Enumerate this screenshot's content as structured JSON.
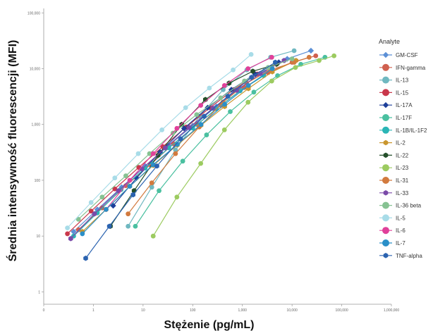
{
  "chart_data": {
    "type": "line",
    "title": "",
    "xlabel": "Stężenie (pg/mL)",
    "ylabel": "Średnia intensywność fluorescencji (MFI)",
    "x_scale": "log",
    "y_scale": "log",
    "xlim": [
      0.1,
      1000000
    ],
    "ylim": [
      0.6,
      120000
    ],
    "x_ticks": [
      {
        "value": 0.1,
        "label": "0"
      },
      {
        "value": 1,
        "label": "1"
      },
      {
        "value": 10,
        "label": "10"
      },
      {
        "value": 100,
        "label": "100"
      },
      {
        "value": 1000,
        "label": "1,000"
      },
      {
        "value": 10000,
        "label": "10,000"
      },
      {
        "value": 100000,
        "label": "100,000"
      },
      {
        "value": 1000000,
        "label": "1,000,000"
      }
    ],
    "y_ticks": [
      {
        "value": 1,
        "label": "1"
      },
      {
        "value": 10,
        "label": "10"
      },
      {
        "value": 100,
        "label": "100"
      },
      {
        "value": 1000,
        "label": "1,000"
      },
      {
        "value": 10000,
        "label": "10,000"
      },
      {
        "value": 100000,
        "label": "100,000"
      }
    ],
    "grid": false,
    "legend_title": "Analyte",
    "legend_position": "right",
    "series": [
      {
        "name": "GM-CSF",
        "color": "#5b8fd6",
        "marker": "diamond",
        "x": [
          0.4,
          1.2,
          3.7,
          11,
          33,
          100,
          300,
          900,
          2700,
          8000,
          24000
        ],
        "y": [
          12,
          30,
          75,
          180,
          420,
          950,
          2100,
          4500,
          9000,
          15000,
          21000
        ]
      },
      {
        "name": "IFN-gamma",
        "color": "#d0604f",
        "marker": "circle",
        "x": [
          0.5,
          1.5,
          4.5,
          14,
          41,
          123,
          370,
          1100,
          3300,
          10000,
          30000
        ],
        "y": [
          13,
          32,
          80,
          190,
          450,
          1000,
          2200,
          4600,
          8500,
          13000,
          17000
        ]
      },
      {
        "name": "IL-13",
        "color": "#6fb8c0",
        "marker": "circle",
        "x": [
          5,
          15,
          45,
          137,
          410,
          1230,
          3700,
          11000
        ],
        "y": [
          15,
          75,
          350,
          1400,
          4200,
          9500,
          16000,
          21000
        ]
      },
      {
        "name": "IL-15",
        "color": "#c9374b",
        "marker": "circle",
        "x": [
          0.3,
          0.9,
          2.7,
          8.2,
          25,
          74,
          222,
          667,
          2000
        ],
        "y": [
          11,
          28,
          70,
          170,
          400,
          900,
          2000,
          4200,
          8000
        ]
      },
      {
        "name": "IL-17A",
        "color": "#1d3f9a",
        "marker": "diamond",
        "x": [
          2.5,
          7.4,
          22,
          67,
          200,
          600,
          1800,
          5400
        ],
        "y": [
          35,
          110,
          320,
          850,
          2000,
          4200,
          8000,
          13000
        ]
      },
      {
        "name": "IL-17F",
        "color": "#4ac0a0",
        "marker": "circle",
        "x": [
          7,
          21,
          63,
          190,
          570,
          1700,
          5100,
          15000,
          46000
        ],
        "y": [
          15,
          65,
          220,
          650,
          1700,
          3800,
          7500,
          12000,
          16000
        ]
      },
      {
        "name": "IL-1B/IL-1F2",
        "color": "#2ab5b5",
        "marker": "circle",
        "x": [
          0.4,
          1.2,
          3.6,
          11,
          33,
          100,
          300,
          900,
          2700
        ],
        "y": [
          10,
          26,
          68,
          165,
          380,
          860,
          1900,
          4000,
          7500
        ]
      },
      {
        "name": "IL-2",
        "color": "#c9962e",
        "marker": "hexagon",
        "x": [
          0.6,
          1.8,
          5.4,
          16,
          49,
          147,
          440,
          1320,
          4000,
          12000
        ],
        "y": [
          12,
          30,
          78,
          185,
          430,
          970,
          2100,
          4400,
          8800,
          14000
        ]
      },
      {
        "name": "IL-22",
        "color": "#244f2a",
        "marker": "hexagon",
        "x": [
          2.2,
          6.6,
          20,
          60,
          180,
          540,
          1620,
          4860
        ],
        "y": [
          15,
          65,
          280,
          1000,
          2800,
          5500,
          9000,
          12000
        ]
      },
      {
        "name": "IL-23",
        "color": "#9ccb60",
        "marker": "circle",
        "x": [
          16,
          48,
          145,
          435,
          1300,
          3900,
          11700,
          35000,
          70000
        ],
        "y": [
          10,
          50,
          200,
          800,
          2500,
          6000,
          10500,
          14000,
          17000
        ]
      },
      {
        "name": "IL-31",
        "color": "#d27a3e",
        "marker": "circle",
        "x": [
          5,
          15,
          45,
          135,
          405,
          1215,
          3645,
          11000,
          22000
        ],
        "y": [
          25,
          90,
          300,
          900,
          2500,
          5500,
          9500,
          13000,
          16000
        ]
      },
      {
        "name": "IL-33",
        "color": "#7a4aa8",
        "marker": "hexagon",
        "x": [
          0.35,
          1.05,
          3.2,
          9.5,
          28,
          85,
          256,
          768,
          2300,
          6900
        ],
        "y": [
          9,
          25,
          65,
          160,
          380,
          880,
          1950,
          4100,
          8200,
          14000
        ]
      },
      {
        "name": "IL-36 beta",
        "color": "#86c292",
        "marker": "circle",
        "x": [
          0.5,
          1.5,
          4.5,
          13.5,
          40,
          120,
          365,
          1100,
          3300,
          10000
        ],
        "y": [
          20,
          50,
          120,
          300,
          700,
          1500,
          3000,
          6000,
          10500,
          15000
        ]
      },
      {
        "name": "IL-5",
        "color": "#a8dce8",
        "marker": "circle",
        "x": [
          0.3,
          0.9,
          2.7,
          8,
          24,
          72,
          216,
          650,
          1500
        ],
        "y": [
          14,
          40,
          110,
          300,
          800,
          2000,
          4500,
          9500,
          18000
        ]
      },
      {
        "name": "IL-6",
        "color": "#e0409a",
        "marker": "circle",
        "x": [
          1.8,
          5.4,
          16,
          48,
          145,
          435,
          1300,
          3900
        ],
        "y": [
          30,
          100,
          300,
          850,
          2200,
          5000,
          10000,
          16000
        ]
      },
      {
        "name": "IL-7",
        "color": "#2a8fc8",
        "marker": "circle",
        "x": [
          0.6,
          1.8,
          5.4,
          16,
          49,
          147,
          440,
          1320,
          4000
        ],
        "y": [
          11,
          30,
          78,
          190,
          440,
          1000,
          2300,
          5000,
          10000
        ]
      },
      {
        "name": "TNF-alpha",
        "color": "#2b63b0",
        "marker": "hexagon",
        "x": [
          0.7,
          2.1,
          6.3,
          19,
          57,
          170,
          510,
          1530,
          4600
        ],
        "y": [
          4,
          15,
          55,
          180,
          550,
          1400,
          3200,
          7000,
          13000
        ]
      }
    ]
  }
}
